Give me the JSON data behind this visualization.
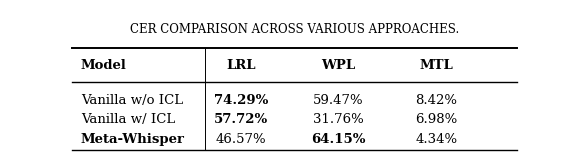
{
  "title": "CER COMPARISON ACROSS VARIOUS APPROACHES.",
  "col_headers": [
    "Model",
    "LRL",
    "WPL",
    "MTL"
  ],
  "rows": [
    [
      "Vanilla w/o ICL",
      "74.29%",
      "59.47%",
      "8.42%"
    ],
    [
      "Vanilla w/ ICL",
      "57.72%",
      "31.76%",
      "6.98%"
    ],
    [
      "Meta-Whisper",
      "46.57%",
      "64.15%",
      "4.34%"
    ]
  ],
  "bold_map": {
    "1_2": true,
    "2_2": true,
    "3_1": true,
    "3_3": true
  },
  "col_header_bold": [
    true,
    true,
    true,
    true
  ],
  "figsize": [
    5.74,
    1.58
  ],
  "dpi": 100,
  "background_color": "#ffffff",
  "font_color": "#000000",
  "title_fontsize": 8.5,
  "table_fontsize": 9.5
}
